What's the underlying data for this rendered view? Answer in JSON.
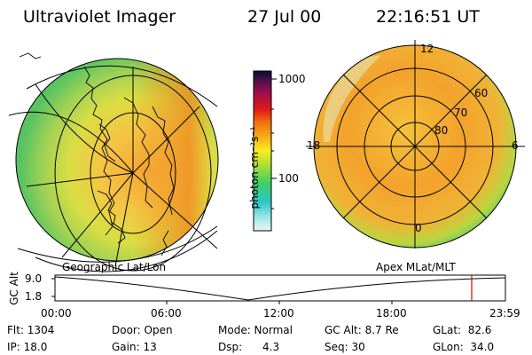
{
  "header": {
    "title": "Ultraviolet Imager",
    "date": "27 Jul 00",
    "time": "22:16:51 UT"
  },
  "colorbar": {
    "unit_label": "photon cm⁻²s⁻¹",
    "ticks": [
      "1000",
      "100"
    ]
  },
  "left_image": {
    "caption": "Geographic Lat/Lon"
  },
  "right_image": {
    "caption": "Apex MLat/MLT",
    "mlt_labels": [
      "12",
      "18",
      "6",
      "0"
    ],
    "lat_labels": [
      "60",
      "70",
      "80"
    ]
  },
  "altitude_plot": {
    "ylabel": "GC Alt",
    "y_ticks": [
      "9.0",
      "1.8"
    ],
    "x_ticks": [
      "00:00",
      "06:00",
      "12:00",
      "18:00",
      "23:59"
    ],
    "marker_color": "#e00000"
  },
  "status": {
    "flt": "Flt: 1304",
    "ip": "IP: 18.0",
    "door": "Door: Open",
    "gain": "Gain: 13",
    "mode": "Mode: Normal",
    "dsp": "Dsp:      4.3",
    "gcalt": "GC Alt: 8.7 Re",
    "seq": "Seq: 30",
    "glat": "GLat:  82.6",
    "glon": "GLon:  34.0"
  }
}
